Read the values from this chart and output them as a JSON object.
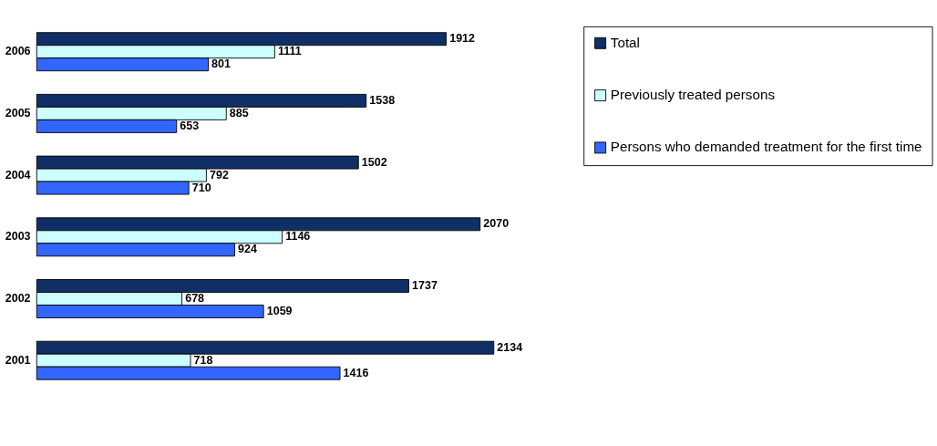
{
  "chart_data": {
    "type": "bar",
    "orientation": "horizontal",
    "categories": [
      "2006",
      "2005",
      "2004",
      "2003",
      "2002",
      "2001"
    ],
    "series": [
      {
        "name": "Total",
        "color": "#102f66",
        "values": [
          1912,
          1538,
          1502,
          2070,
          1737,
          2134
        ]
      },
      {
        "name": "Previously treated persons",
        "color": "#ccffff",
        "values": [
          1111,
          885,
          792,
          1146,
          678,
          718
        ]
      },
      {
        "name": "Persons who demanded treatment for the first time",
        "color": "#3366ff",
        "values": [
          801,
          653,
          710,
          924,
          1059,
          1416
        ]
      }
    ],
    "data_labels": true,
    "legend": "right",
    "tick_labels": "y"
  }
}
